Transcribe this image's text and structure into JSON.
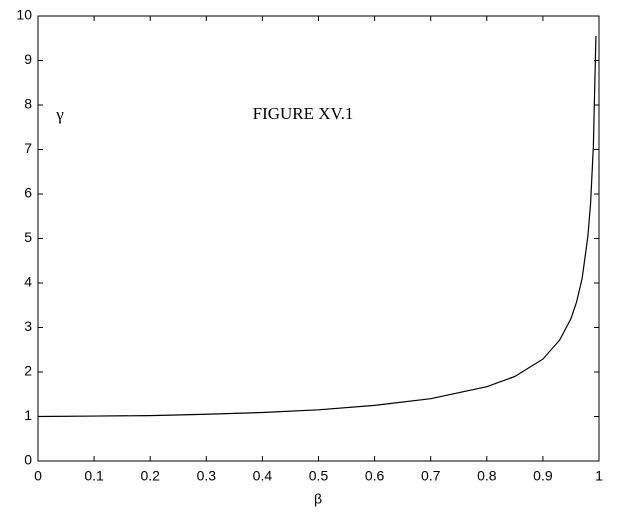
{
  "chart_data": {
    "type": "line",
    "title": "FIGURE XV.1",
    "xlabel": "β",
    "ylabel": "γ",
    "x": [
      0,
      0.1,
      0.2,
      0.3,
      0.4,
      0.5,
      0.6,
      0.7,
      0.8,
      0.85,
      0.9,
      0.93,
      0.95,
      0.96,
      0.97,
      0.98,
      0.985,
      0.99,
      0.9945
    ],
    "series": [
      {
        "name": "γ",
        "color": "#000000",
        "values": [
          1,
          1.01,
          1.02,
          1.05,
          1.09,
          1.15,
          1.25,
          1.4,
          1.67,
          1.9,
          2.29,
          2.72,
          3.2,
          3.57,
          4.11,
          5.03,
          5.79,
          7.09,
          9.55
        ]
      }
    ],
    "xlim": [
      0,
      1
    ],
    "ylim": [
      0,
      10
    ],
    "xticks": [
      0,
      0.1,
      0.2,
      0.3,
      0.4,
      0.5,
      0.6,
      0.7,
      0.8,
      0.9,
      1
    ],
    "yticks": [
      0,
      1,
      2,
      3,
      4,
      5,
      6,
      7,
      8,
      9,
      10
    ],
    "grid": false
  }
}
